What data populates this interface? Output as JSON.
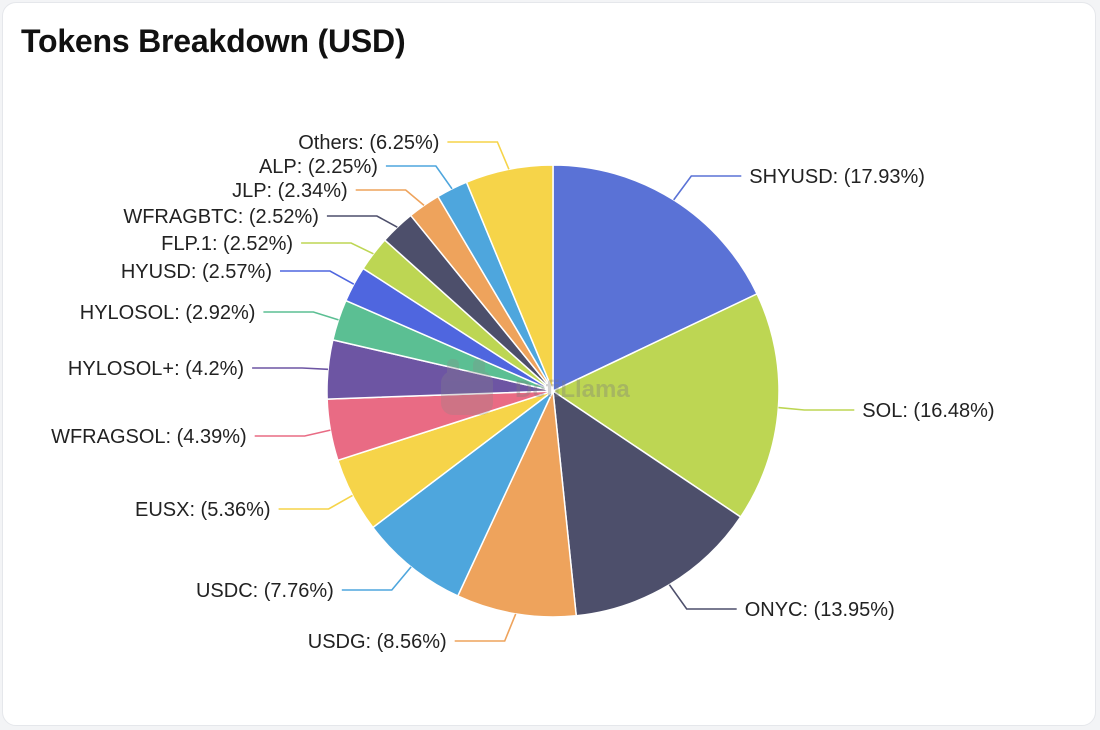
{
  "card": {
    "title": "Tokens Breakdown (USD)"
  },
  "watermark": {
    "text": "DefiLlama"
  },
  "chart_data": {
    "type": "pie",
    "title": "Tokens Breakdown (USD)",
    "unit": "%",
    "slices": [
      {
        "name": "SHYUSD",
        "value": 17.93,
        "label": "SHYUSD: (17.93%)",
        "color": "#5a72d6"
      },
      {
        "name": "SOL",
        "value": 16.48,
        "label": "SOL: (16.48%)",
        "color": "#bdd653"
      },
      {
        "name": "ONYC",
        "value": 13.95,
        "label": "ONYC: (13.95%)",
        "color": "#4d4f6b"
      },
      {
        "name": "USDG",
        "value": 8.56,
        "label": "USDG: (8.56%)",
        "color": "#eea35c"
      },
      {
        "name": "USDC",
        "value": 7.76,
        "label": "USDC: (7.76%)",
        "color": "#4ea6dd"
      },
      {
        "name": "EUSX",
        "value": 5.36,
        "label": "EUSX: (5.36%)",
        "color": "#f6d449"
      },
      {
        "name": "WFRAGSOL",
        "value": 4.39,
        "label": "WFRAGSOL: (4.39%)",
        "color": "#e96b84"
      },
      {
        "name": "HYLOSOL+",
        "value": 4.2,
        "label": "HYLOSOL+: (4.2%)",
        "color": "#6d55a3"
      },
      {
        "name": "HYLOSOL",
        "value": 2.92,
        "label": "HYLOSOL: (2.92%)",
        "color": "#5bbf93"
      },
      {
        "name": "HYUSD",
        "value": 2.57,
        "label": "HYUSD: (2.57%)",
        "color": "#4f66df"
      },
      {
        "name": "FLP.1",
        "value": 2.52,
        "label": "FLP.1: (2.52%)",
        "color": "#bdd653"
      },
      {
        "name": "WFRAGBTC",
        "value": 2.52,
        "label": "WFRAGBTC: (2.52%)",
        "color": "#4d4f6b"
      },
      {
        "name": "JLP",
        "value": 2.34,
        "label": "JLP: (2.34%)",
        "color": "#eea35c"
      },
      {
        "name": "ALP",
        "value": 2.25,
        "label": "ALP: (2.25%)",
        "color": "#4ea6dd"
      },
      {
        "name": "Others",
        "value": 6.25,
        "label": "Others: (6.25%)",
        "color": "#f6d449"
      }
    ]
  }
}
